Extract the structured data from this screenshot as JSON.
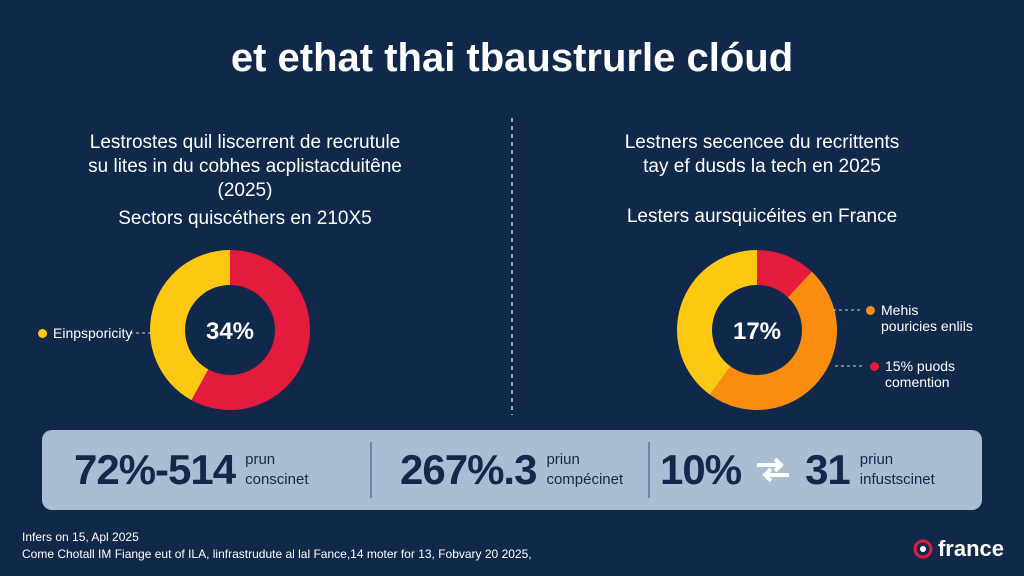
{
  "title": "et ethat thai tbaustrurle clóud",
  "chart_data": [
    {
      "type": "pie",
      "subtitle": [
        "Lestrostes quil liscerrent de recrutule",
        "su lites in du cobhes acplistacduitêne",
        "(2025)"
      ],
      "caption": "Sectors quiscéthers en 210X5",
      "center_label": "34%",
      "categories": [
        null,
        "Einpsporicity"
      ],
      "values": [
        58,
        42
      ],
      "colors": [
        "#e31b3d",
        "#fcc812"
      ]
    },
    {
      "type": "pie",
      "subtitle": [
        "Lestners secencee du recrittents",
        "tay ef dusds la tech en 2025"
      ],
      "caption": "Lesters aursquicéites en France",
      "center_label": "17%",
      "categories": [
        "15% puods comention",
        "Mehis pouricies enlils",
        null
      ],
      "values": [
        12,
        48,
        40
      ],
      "colors": [
        "#e31b3d",
        "#fa8c0f",
        "#fcc812"
      ]
    }
  ],
  "stats": [
    {
      "value": "72%-514",
      "lines": [
        "prun",
        "conscinet"
      ]
    },
    {
      "value": "267%.3",
      "lines": [
        "priun",
        "compécinet"
      ]
    },
    {
      "value": "10%",
      "value2": "31",
      "lines": [
        "priun",
        "infustscinet"
      ]
    }
  ],
  "footer": {
    "date": "Infers on 15, Apl 2025",
    "source": "Come Chotall IM Fiange eut of ILA, linfrastrudute al lal Fance,14 moter for 13, Fobvary 20 2025,"
  },
  "logo": "france"
}
